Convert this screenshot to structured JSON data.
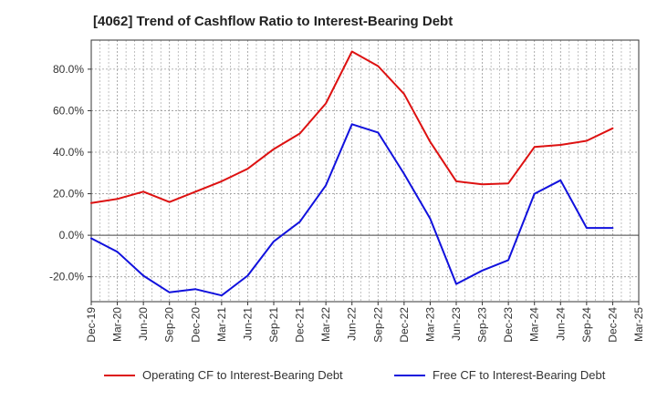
{
  "title": "[4062]  Trend of Cashflow Ratio to Interest-Bearing Debt",
  "colors": {
    "operating": "#dd1111",
    "free": "#1111dd",
    "grid": "#999999",
    "axis": "#333333"
  },
  "chart_data": {
    "type": "line",
    "title": "[4062]  Trend of Cashflow Ratio to Interest-Bearing Debt",
    "xlabel": "",
    "ylabel": "",
    "categories": [
      "Dec-19",
      "Mar-20",
      "Jun-20",
      "Sep-20",
      "Dec-20",
      "Mar-21",
      "Jun-21",
      "Sep-21",
      "Dec-21",
      "Mar-22",
      "Jun-22",
      "Sep-22",
      "Dec-22",
      "Mar-23",
      "Jun-23",
      "Sep-23",
      "Dec-23",
      "Mar-24",
      "Jun-24",
      "Sep-24",
      "Dec-24",
      "Mar-25"
    ],
    "ylim": [
      -32,
      94
    ],
    "yticks": [
      -20,
      0,
      20,
      40,
      60,
      80
    ],
    "ytick_labels": [
      "-20.0%",
      "0.0%",
      "20.0%",
      "40.0%",
      "60.0%",
      "80.0%"
    ],
    "grid": true,
    "legend_position": "bottom",
    "series": [
      {
        "name": "Operating CF to Interest-Bearing Debt",
        "color": "#dd1111",
        "values": [
          15.5,
          17.5,
          21,
          16,
          21,
          26,
          32,
          41.5,
          49,
          63.5,
          88.5,
          81.5,
          68,
          45,
          26,
          24.5,
          25,
          42.5,
          43.5,
          45.5,
          51.5,
          null
        ]
      },
      {
        "name": "Free CF to Interest-Bearing Debt",
        "color": "#1111dd",
        "values": [
          -1.5,
          -8,
          -19.5,
          -27.5,
          -26,
          -29,
          -19.5,
          -3,
          6.5,
          24,
          53.5,
          49.5,
          29.5,
          8,
          -23.5,
          -17,
          -12,
          20,
          26.5,
          3.5,
          3.5,
          null
        ]
      }
    ]
  },
  "legend": {
    "items": [
      {
        "label": "Operating CF to Interest-Bearing Debt"
      },
      {
        "label": "Free CF to Interest-Bearing Debt"
      }
    ]
  }
}
